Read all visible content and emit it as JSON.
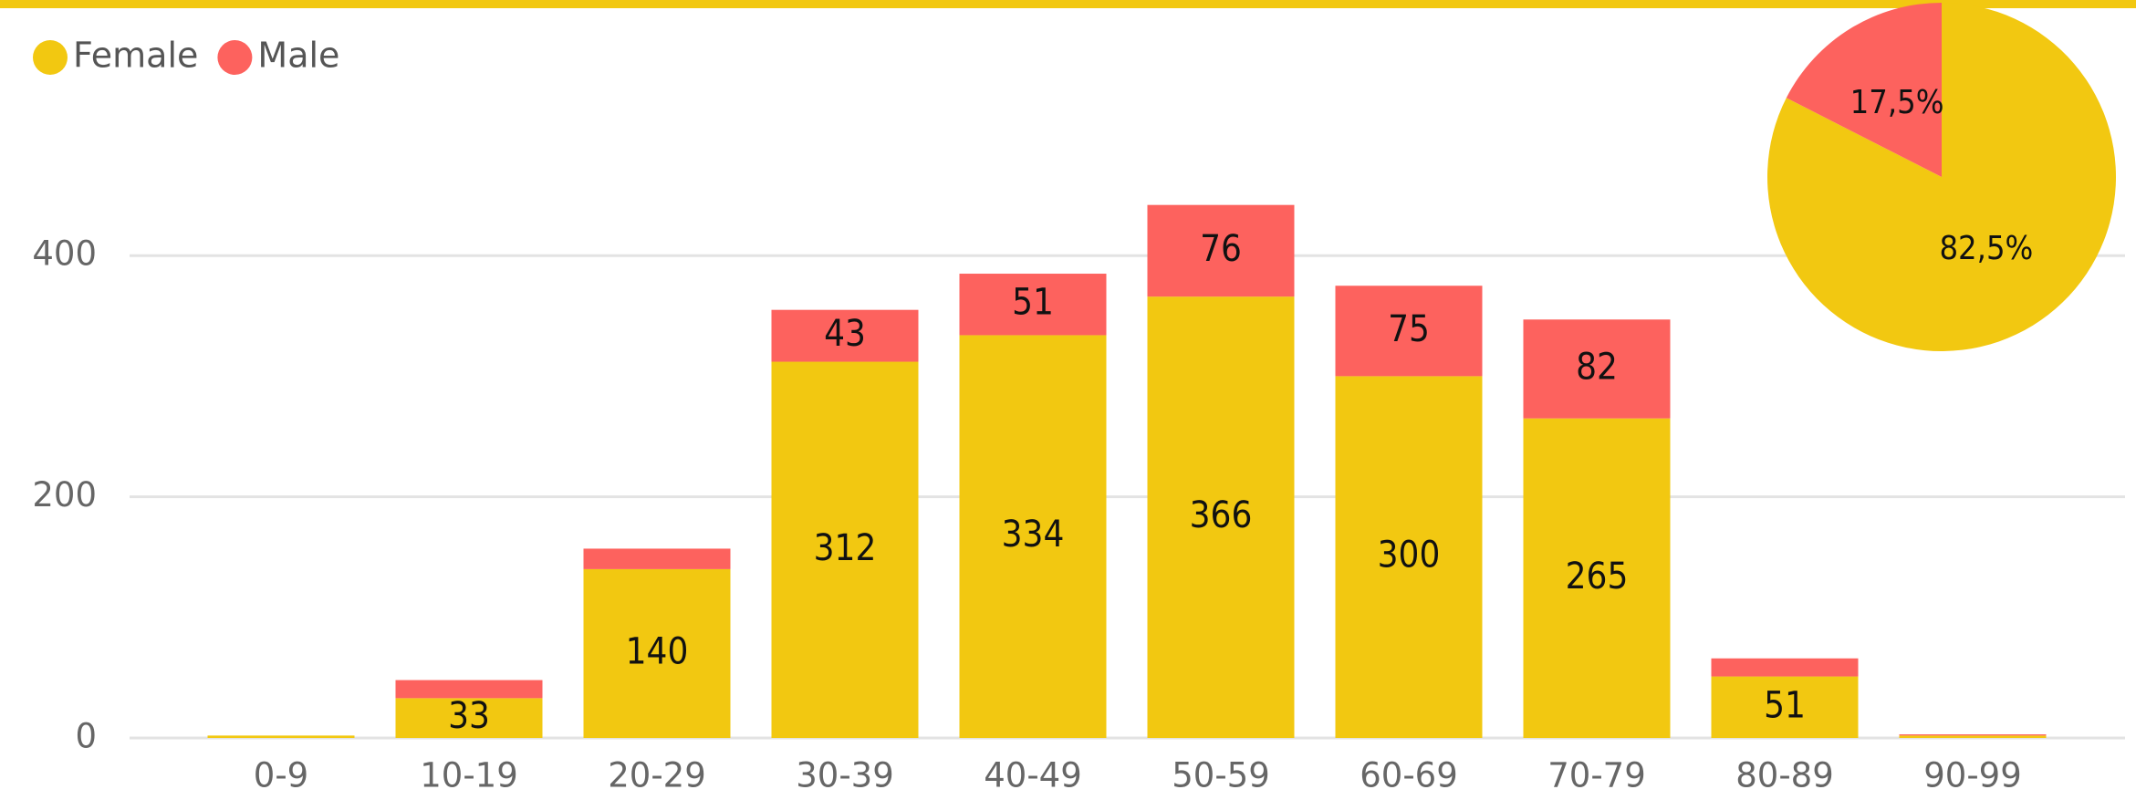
{
  "chart_data": [
    {
      "type": "bar",
      "categories": [
        "0-9",
        "10-19",
        "20-29",
        "30-39",
        "40-49",
        "50-59",
        "60-69",
        "70-79",
        "80-89",
        "90-99"
      ],
      "series": [
        {
          "name": "Female",
          "color": "#F2C811",
          "values": [
            2,
            33,
            140,
            312,
            334,
            366,
            300,
            265,
            51,
            2
          ]
        },
        {
          "name": "Male",
          "color": "#FD625E",
          "values": [
            0,
            15,
            17,
            43,
            51,
            76,
            75,
            82,
            15,
            1
          ]
        }
      ],
      "ylim": [
        0,
        500
      ],
      "yticks": [
        0,
        200,
        400
      ],
      "grid": true,
      "legend": "top-left"
    },
    {
      "type": "pie",
      "categories": [
        "Female",
        "Male"
      ],
      "values": [
        82.5,
        17.5
      ],
      "value_labels": [
        "82,5%",
        "17,5%"
      ],
      "colors": [
        "#F2C811",
        "#FD625E"
      ]
    }
  ]
}
